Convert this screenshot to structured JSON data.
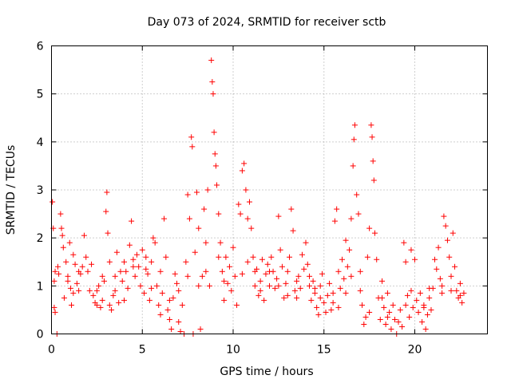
{
  "chart_data": {
    "type": "scatter",
    "title": "Day 073 of 2024, SRMTID for receiver sctb",
    "xlabel": "GPS time / hours",
    "ylabel": "SRMTID / TECUs",
    "xlim": [
      0,
      24
    ],
    "ylim": [
      0,
      6
    ],
    "xticks": [
      0,
      5,
      10,
      15,
      20
    ],
    "yticks": [
      0,
      1,
      2,
      3,
      4,
      5,
      6
    ],
    "xtick_labels": [
      "0",
      "5",
      "10",
      "15",
      "20"
    ],
    "ytick_labels": [
      "0",
      "1",
      "2",
      "3",
      "4",
      "5",
      "6"
    ],
    "grid": true,
    "marker": "plus",
    "series_color": "#ff0000",
    "points": [
      [
        0.05,
        2.75
      ],
      [
        0.1,
        2.2
      ],
      [
        0.15,
        1.1
      ],
      [
        0.15,
        0.55
      ],
      [
        0.2,
        0.45
      ],
      [
        0.3,
        0.0
      ],
      [
        0.35,
        1.4
      ],
      [
        0.4,
        1.25
      ],
      [
        0.5,
        2.5
      ],
      [
        0.55,
        2.2
      ],
      [
        0.6,
        2.05
      ],
      [
        0.65,
        1.8
      ],
      [
        0.7,
        0.75
      ],
      [
        0.8,
        1.5
      ],
      [
        0.9,
        1.2
      ],
      [
        1.0,
        1.9
      ],
      [
        1.05,
        0.95
      ],
      [
        1.1,
        0.6
      ],
      [
        1.2,
        1.65
      ],
      [
        1.3,
        1.45
      ],
      [
        1.4,
        1.05
      ],
      [
        1.5,
        0.9
      ],
      [
        1.6,
        1.25
      ],
      [
        1.7,
        1.4
      ],
      [
        1.8,
        2.05
      ],
      [
        1.9,
        1.6
      ],
      [
        2.0,
        1.3
      ],
      [
        2.1,
        0.9
      ],
      [
        2.2,
        1.45
      ],
      [
        2.3,
        0.8
      ],
      [
        2.4,
        0.65
      ],
      [
        2.5,
        0.9
      ],
      [
        2.6,
        1.0
      ],
      [
        2.7,
        0.55
      ],
      [
        2.8,
        0.7
      ],
      [
        2.9,
        1.1
      ],
      [
        3.0,
        2.55
      ],
      [
        3.05,
        2.95
      ],
      [
        3.1,
        2.1
      ],
      [
        3.2,
        1.5
      ],
      [
        3.3,
        0.5
      ],
      [
        3.4,
        0.8
      ],
      [
        3.5,
        0.9
      ],
      [
        3.6,
        1.7
      ],
      [
        3.7,
        0.65
      ],
      [
        3.8,
        1.3
      ],
      [
        3.9,
        1.1
      ],
      [
        4.0,
        1.5
      ],
      [
        4.1,
        1.3
      ],
      [
        4.2,
        0.95
      ],
      [
        4.3,
        1.85
      ],
      [
        4.4,
        2.35
      ],
      [
        4.5,
        1.55
      ],
      [
        4.6,
        1.2
      ],
      [
        4.7,
        1.65
      ],
      [
        4.8,
        1.4
      ],
      [
        4.9,
        1.0
      ],
      [
        5.0,
        1.75
      ],
      [
        5.1,
        0.85
      ],
      [
        5.2,
        1.6
      ],
      [
        5.3,
        1.25
      ],
      [
        5.4,
        0.7
      ],
      [
        5.5,
        1.5
      ],
      [
        5.6,
        2.0
      ],
      [
        5.7,
        1.9
      ],
      [
        5.8,
        1.0
      ],
      [
        5.9,
        0.6
      ],
      [
        6.0,
        0.4
      ],
      [
        6.1,
        0.85
      ],
      [
        6.2,
        2.4
      ],
      [
        6.3,
        1.6
      ],
      [
        6.4,
        0.5
      ],
      [
        6.5,
        0.3
      ],
      [
        6.6,
        0.1
      ],
      [
        6.7,
        0.75
      ],
      [
        6.8,
        1.25
      ],
      [
        6.9,
        1.05
      ],
      [
        7.0,
        0.25
      ],
      [
        7.1,
        0.05
      ],
      [
        7.2,
        0.6
      ],
      [
        7.3,
        0.0
      ],
      [
        7.4,
        1.5
      ],
      [
        7.5,
        2.9
      ],
      [
        7.6,
        2.4
      ],
      [
        7.7,
        4.1
      ],
      [
        7.75,
        3.9
      ],
      [
        7.8,
        0.0
      ],
      [
        7.9,
        1.7
      ],
      [
        8.0,
        2.95
      ],
      [
        8.1,
        2.2
      ],
      [
        8.2,
        0.1
      ],
      [
        8.3,
        1.2
      ],
      [
        8.4,
        2.6
      ],
      [
        8.5,
        1.9
      ],
      [
        8.6,
        3.0
      ],
      [
        8.7,
        1.0
      ],
      [
        8.8,
        5.7
      ],
      [
        8.85,
        5.25
      ],
      [
        8.9,
        5.0
      ],
      [
        8.95,
        4.2
      ],
      [
        9.0,
        3.75
      ],
      [
        9.05,
        3.5
      ],
      [
        9.1,
        3.1
      ],
      [
        9.2,
        2.5
      ],
      [
        9.3,
        1.9
      ],
      [
        9.4,
        1.3
      ],
      [
        9.5,
        0.7
      ],
      [
        9.6,
        1.6
      ],
      [
        9.7,
        1.05
      ],
      [
        9.8,
        1.4
      ],
      [
        9.9,
        0.9
      ],
      [
        10.0,
        1.8
      ],
      [
        10.1,
        1.2
      ],
      [
        10.2,
        0.6
      ],
      [
        10.3,
        2.7
      ],
      [
        10.4,
        2.5
      ],
      [
        10.5,
        3.4
      ],
      [
        10.6,
        3.55
      ],
      [
        10.7,
        3.0
      ],
      [
        10.8,
        2.4
      ],
      [
        10.9,
        2.75
      ],
      [
        11.0,
        2.2
      ],
      [
        11.1,
        1.6
      ],
      [
        11.2,
        1.0
      ],
      [
        11.3,
        1.35
      ],
      [
        11.4,
        0.8
      ],
      [
        11.5,
        1.1
      ],
      [
        11.6,
        1.55
      ],
      [
        11.7,
        0.7
      ],
      [
        11.8,
        1.25
      ],
      [
        11.9,
        1.45
      ],
      [
        12.0,
        1.0
      ],
      [
        12.1,
        1.6
      ],
      [
        12.2,
        1.3
      ],
      [
        12.3,
        0.95
      ],
      [
        12.4,
        1.15
      ],
      [
        12.5,
        2.45
      ],
      [
        12.6,
        1.75
      ],
      [
        12.7,
        1.4
      ],
      [
        12.8,
        0.75
      ],
      [
        12.9,
        1.05
      ],
      [
        13.0,
        1.3
      ],
      [
        13.1,
        1.6
      ],
      [
        13.2,
        2.6
      ],
      [
        13.3,
        2.15
      ],
      [
        13.4,
        0.9
      ],
      [
        13.5,
        0.75
      ],
      [
        13.6,
        1.2
      ],
      [
        13.7,
        0.95
      ],
      [
        13.8,
        1.65
      ],
      [
        13.9,
        1.35
      ],
      [
        14.0,
        1.9
      ],
      [
        14.1,
        1.45
      ],
      [
        14.2,
        1.0
      ],
      [
        14.3,
        0.7
      ],
      [
        14.4,
        1.1
      ],
      [
        14.5,
        0.85
      ],
      [
        14.6,
        0.55
      ],
      [
        14.7,
        0.4
      ],
      [
        14.8,
        1.0
      ],
      [
        14.9,
        1.25
      ],
      [
        15.0,
        0.65
      ],
      [
        15.1,
        0.45
      ],
      [
        15.2,
        0.8
      ],
      [
        15.3,
        1.05
      ],
      [
        15.4,
        0.5
      ],
      [
        15.5,
        0.85
      ],
      [
        15.6,
        2.35
      ],
      [
        15.7,
        2.6
      ],
      [
        15.8,
        1.3
      ],
      [
        15.9,
        0.95
      ],
      [
        16.0,
        1.55
      ],
      [
        16.1,
        1.15
      ],
      [
        16.2,
        1.95
      ],
      [
        16.3,
        1.4
      ],
      [
        16.4,
        1.75
      ],
      [
        16.5,
        2.4
      ],
      [
        16.6,
        3.5
      ],
      [
        16.65,
        4.05
      ],
      [
        16.7,
        4.35
      ],
      [
        16.8,
        2.9
      ],
      [
        16.9,
        2.5
      ],
      [
        17.0,
        1.3
      ],
      [
        17.1,
        0.6
      ],
      [
        17.2,
        0.2
      ],
      [
        17.3,
        0.35
      ],
      [
        17.4,
        1.6
      ],
      [
        17.5,
        2.2
      ],
      [
        17.6,
        4.35
      ],
      [
        17.65,
        4.1
      ],
      [
        17.7,
        3.6
      ],
      [
        17.75,
        3.2
      ],
      [
        17.8,
        2.1
      ],
      [
        17.9,
        1.55
      ],
      [
        18.0,
        0.75
      ],
      [
        18.1,
        0.3
      ],
      [
        18.2,
        1.1
      ],
      [
        18.3,
        0.55
      ],
      [
        18.4,
        0.2
      ],
      [
        18.5,
        0.85
      ],
      [
        18.6,
        0.45
      ],
      [
        18.7,
        0.1
      ],
      [
        18.8,
        0.6
      ],
      [
        18.9,
        0.3
      ],
      [
        19.0,
        0.0
      ],
      [
        19.1,
        0.25
      ],
      [
        19.2,
        0.5
      ],
      [
        19.3,
        0.15
      ],
      [
        19.4,
        1.9
      ],
      [
        19.5,
        1.5
      ],
      [
        19.6,
        0.8
      ],
      [
        19.7,
        0.35
      ],
      [
        19.8,
        1.75
      ],
      [
        19.9,
        0.55
      ],
      [
        20.0,
        1.55
      ],
      [
        20.1,
        0.7
      ],
      [
        20.2,
        0.45
      ],
      [
        20.3,
        0.85
      ],
      [
        20.4,
        0.25
      ],
      [
        20.5,
        0.6
      ],
      [
        20.6,
        0.1
      ],
      [
        20.7,
        0.4
      ],
      [
        20.8,
        0.75
      ],
      [
        20.9,
        0.5
      ],
      [
        21.0,
        0.95
      ],
      [
        21.1,
        1.55
      ],
      [
        21.2,
        1.35
      ],
      [
        21.3,
        1.8
      ],
      [
        21.4,
        1.15
      ],
      [
        21.5,
        0.85
      ],
      [
        21.6,
        2.45
      ],
      [
        21.7,
        2.25
      ],
      [
        21.8,
        1.95
      ],
      [
        21.9,
        1.6
      ],
      [
        22.0,
        1.2
      ],
      [
        22.1,
        2.1
      ],
      [
        22.2,
        1.4
      ],
      [
        22.3,
        0.9
      ],
      [
        22.4,
        0.75
      ],
      [
        22.5,
        1.05
      ],
      [
        22.6,
        0.65
      ],
      [
        22.7,
        0.85
      ],
      [
        0.2,
        1.3
      ],
      [
        0.9,
        1.1
      ],
      [
        1.5,
        1.3
      ],
      [
        2.5,
        0.6
      ],
      [
        3.5,
        1.2
      ],
      [
        4.5,
        1.4
      ],
      [
        5.5,
        0.95
      ],
      [
        6.5,
        0.7
      ],
      [
        7.5,
        1.2
      ],
      [
        8.5,
        1.3
      ],
      [
        9.5,
        1.1
      ],
      [
        10.5,
        1.25
      ],
      [
        11.5,
        0.9
      ],
      [
        12.5,
        1.0
      ],
      [
        13.5,
        1.1
      ],
      [
        14.5,
        0.95
      ],
      [
        15.5,
        0.65
      ],
      [
        16.5,
        1.2
      ],
      [
        17.5,
        0.45
      ],
      [
        18.5,
        0.35
      ],
      [
        19.5,
        0.6
      ],
      [
        20.5,
        0.55
      ],
      [
        21.5,
        1.0
      ],
      [
        22.5,
        0.8
      ],
      [
        1.2,
        0.85
      ],
      [
        2.8,
        1.2
      ],
      [
        4.0,
        0.7
      ],
      [
        6.0,
        1.3
      ],
      [
        7.0,
        0.9
      ],
      [
        9.2,
        1.6
      ],
      [
        10.8,
        1.5
      ],
      [
        12.0,
        1.3
      ],
      [
        13.0,
        0.8
      ],
      [
        14.2,
        1.2
      ],
      [
        15.8,
        0.55
      ],
      [
        17.0,
        0.9
      ],
      [
        18.2,
        0.75
      ],
      [
        19.8,
        0.9
      ],
      [
        20.8,
        0.95
      ],
      [
        22.0,
        0.9
      ],
      [
        3.2,
        0.6
      ],
      [
        5.2,
        1.35
      ],
      [
        8.1,
        1.0
      ],
      [
        11.2,
        1.3
      ],
      [
        14.8,
        0.75
      ],
      [
        16.2,
        0.85
      ]
    ]
  }
}
